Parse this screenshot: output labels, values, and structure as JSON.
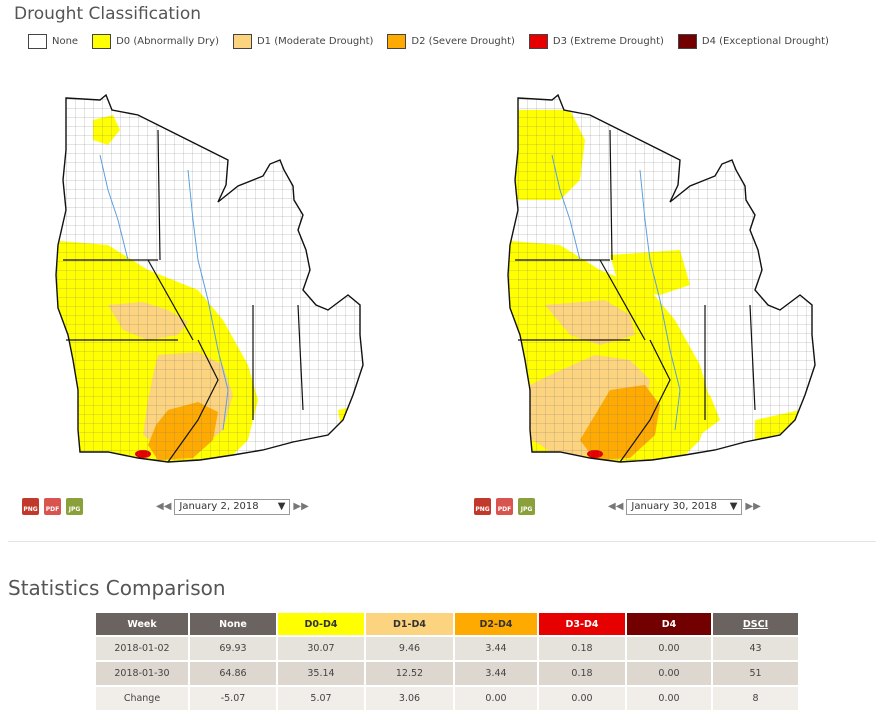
{
  "header": {
    "title": "Drought Classification"
  },
  "legend": [
    {
      "label": "None",
      "color": "#ffffff"
    },
    {
      "label": "D0 (Abnormally Dry)",
      "color": "#ffff00"
    },
    {
      "label": "D1 (Moderate Drought)",
      "color": "#fcd37f"
    },
    {
      "label": "D2 (Severe Drought)",
      "color": "#ffaa00"
    },
    {
      "label": "D3 (Extreme Drought)",
      "color": "#e60000"
    },
    {
      "label": "D4 (Exceptional Drought)",
      "color": "#730000"
    }
  ],
  "maps": [
    {
      "date": "January 2, 2018"
    },
    {
      "date": "January 30, 2018"
    }
  ],
  "downloads": [
    "PNG",
    "PDF",
    "JPG"
  ],
  "stats": {
    "title": "Statistics Comparison",
    "headers": [
      "Week",
      "None",
      "D0-D4",
      "D1-D4",
      "D2-D4",
      "D3-D4",
      "D4",
      "DSCI"
    ],
    "header_colors": [
      "#6b6360",
      "#6b6360",
      "#ffff00",
      "#fcd37f",
      "#ffaa00",
      "#e60000",
      "#730000",
      "#6b6360"
    ],
    "rows": [
      [
        "2018-01-02",
        "69.93",
        "30.07",
        "9.46",
        "3.44",
        "0.18",
        "0.00",
        "43"
      ],
      [
        "2018-01-30",
        "64.86",
        "35.14",
        "12.52",
        "3.44",
        "0.18",
        "0.00",
        "51"
      ],
      [
        "Change",
        "-5.07",
        "5.07",
        "3.06",
        "0.00",
        "0.00",
        "0.00",
        "8"
      ]
    ]
  }
}
